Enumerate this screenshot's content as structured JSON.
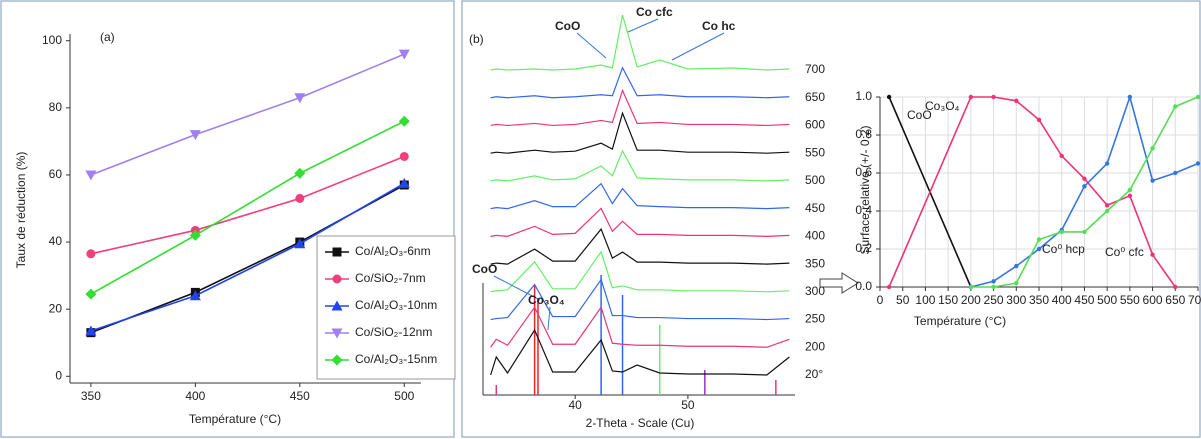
{
  "chart_data": [
    {
      "type": "line",
      "panel_label": "(a)",
      "x_label": "Température (°C)",
      "y_label": "Taux de réduction (%)",
      "x": [
        350,
        400,
        450,
        500
      ],
      "series": [
        {
          "name": "Co/Al₂O₃-6nm",
          "color": "#111111",
          "marker": "square",
          "values": [
            13,
            25,
            40,
            57
          ]
        },
        {
          "name": "Co/SiO₂-7nm",
          "color": "#f0407a",
          "marker": "circle",
          "values": [
            36.5,
            43.5,
            53,
            65.5
          ]
        },
        {
          "name": "Co/Al₂O₃-10nm",
          "color": "#2244ee",
          "marker": "triangle-up",
          "values": [
            13.5,
            24,
            39.5,
            57.5
          ]
        },
        {
          "name": "Co/SiO₂-12nm",
          "color": "#a080f0",
          "marker": "triangle-down",
          "values": [
            60,
            72,
            83,
            96
          ]
        },
        {
          "name": "Co/Al₂O₃-15nm",
          "color": "#33dd33",
          "marker": "diamond",
          "values": [
            24.5,
            42,
            60.5,
            76
          ]
        }
      ],
      "xlim": [
        340,
        508
      ],
      "ylim": [
        -2,
        102
      ],
      "xticks": [
        350,
        400,
        450,
        500
      ],
      "yticks": [
        0,
        20,
        40,
        60,
        80,
        100
      ],
      "legend": "lower right"
    },
    {
      "type": "spectra",
      "panel_label": "(b)",
      "x_label": "2-Theta - Scale (Cu)",
      "x": [
        32.5,
        33,
        34,
        36.4,
        38,
        40,
        42.3,
        43.3,
        44.2,
        45.5,
        47.5,
        50,
        54,
        57,
        59
      ],
      "series": [
        {
          "name": "700",
          "color": "#66ee66",
          "values": [
            0,
            1,
            0,
            1,
            0,
            1,
            5,
            2,
            55,
            3,
            10,
            1,
            2,
            0,
            1
          ]
        },
        {
          "name": "650",
          "color": "#3366ee",
          "values": [
            0,
            1,
            0,
            2,
            0,
            1,
            3,
            2,
            30,
            2,
            3,
            1,
            1,
            0,
            1
          ]
        },
        {
          "name": "600",
          "color": "#ee3377",
          "values": [
            0,
            1,
            0,
            2,
            0,
            1,
            5,
            3,
            35,
            2,
            3,
            1,
            1,
            0,
            1
          ]
        },
        {
          "name": "550",
          "color": "#111111",
          "values": [
            0,
            1,
            0,
            3,
            1,
            2,
            10,
            4,
            40,
            3,
            3,
            1,
            1,
            0,
            1
          ]
        },
        {
          "name": "500",
          "color": "#66ee66",
          "values": [
            0,
            1,
            0,
            5,
            1,
            2,
            15,
            5,
            30,
            3,
            2,
            1,
            1,
            0,
            1
          ]
        },
        {
          "name": "450",
          "color": "#3366ee",
          "values": [
            0,
            1,
            0,
            8,
            2,
            2,
            25,
            5,
            20,
            3,
            2,
            1,
            1,
            0,
            1
          ]
        },
        {
          "name": "400",
          "color": "#ee3377",
          "values": [
            0,
            1,
            0,
            10,
            2,
            3,
            28,
            5,
            15,
            2,
            2,
            1,
            1,
            0,
            1
          ]
        },
        {
          "name": "350",
          "color": "#111111",
          "values": [
            0,
            1,
            0,
            15,
            3,
            3,
            35,
            6,
            12,
            2,
            2,
            1,
            1,
            0,
            1
          ]
        },
        {
          "name": "300",
          "color": "#66ee66",
          "values": [
            0,
            1,
            2,
            30,
            3,
            3,
            40,
            4,
            6,
            2,
            2,
            1,
            1,
            0,
            1
          ]
        },
        {
          "name": "250",
          "color": "#3366ee",
          "values": [
            0,
            1,
            2,
            35,
            3,
            3,
            40,
            4,
            4,
            2,
            2,
            1,
            1,
            0,
            1
          ]
        },
        {
          "name": "200",
          "color": "#ee3377",
          "values": [
            0,
            8,
            2,
            40,
            3,
            3,
            40,
            4,
            3,
            2,
            2,
            1,
            1,
            0,
            8
          ]
        },
        {
          "name": "20°",
          "color": "#111111",
          "values": [
            0,
            18,
            2,
            45,
            3,
            3,
            35,
            4,
            3,
            10,
            2,
            1,
            1,
            0,
            18
          ]
        }
      ],
      "reference_peaks": [
        {
          "x": 33,
          "height": 10,
          "color": "#ee3377"
        },
        {
          "x": 36.4,
          "height": 110,
          "color": "#ee2222"
        },
        {
          "x": 36.7,
          "height": 95,
          "color": "#ee2222"
        },
        {
          "x": 42.3,
          "height": 120,
          "color": "#3366ee"
        },
        {
          "x": 44.2,
          "height": 100,
          "color": "#3366ee"
        },
        {
          "x": 47.5,
          "height": 70,
          "color": "#66ee66"
        },
        {
          "x": 51.5,
          "height": 25,
          "color": "#9933cc"
        },
        {
          "x": 57.8,
          "height": 15,
          "color": "#ee3377"
        }
      ],
      "annotations": [
        "CoO",
        "Co cfc",
        "Co hc",
        "CoO",
        "Co₃O₄"
      ],
      "xlim": [
        32,
        59.5
      ],
      "xticks": [
        40,
        50
      ]
    },
    {
      "type": "line",
      "x_label": "Température (°C)",
      "y_label": "Surface relative (+/- 0.2)",
      "series": [
        {
          "name": "Co₃O₄",
          "color": "#111111",
          "x": [
            20,
            200
          ],
          "values": [
            1.0,
            0
          ]
        },
        {
          "name": "CoO",
          "color": "#ee3377",
          "x": [
            20,
            200,
            250,
            300,
            350,
            400,
            450,
            500,
            550,
            600,
            650
          ],
          "values": [
            0,
            1.0,
            1.0,
            0.98,
            0.88,
            0.69,
            0.57,
            0.43,
            0.48,
            0.17,
            0
          ]
        },
        {
          "name": "Co⁰ hcp",
          "color": "#3377dd",
          "x": [
            200,
            250,
            300,
            350,
            400,
            450,
            500,
            550,
            600,
            650,
            700
          ],
          "values": [
            0,
            0.03,
            0.11,
            0.2,
            0.3,
            0.53,
            0.65,
            1.0,
            0.56,
            0.6,
            0.65
          ]
        },
        {
          "name": "Co⁰ cfc",
          "color": "#55dd55",
          "x": [
            200,
            250,
            300,
            350,
            400,
            450,
            500,
            550,
            600,
            650,
            700
          ],
          "values": [
            0,
            0,
            0.02,
            0.25,
            0.29,
            0.29,
            0.4,
            0.51,
            0.73,
            0.95,
            1.0
          ]
        }
      ],
      "xlim": [
        0,
        700
      ],
      "ylim": [
        0,
        1.0
      ],
      "xticks": [
        0,
        50,
        100,
        150,
        200,
        250,
        300,
        350,
        400,
        450,
        500,
        550,
        600,
        650,
        700
      ],
      "yticks": [
        {
          "value": 0,
          "label": "0.0"
        },
        {
          "value": 0.2,
          "label": "0.2"
        },
        {
          "value": 0.4,
          "label": "0.4"
        },
        {
          "value": 0.6,
          "label": "0.6"
        },
        {
          "value": 0.8,
          "label": "0.8"
        },
        {
          "value": 1.0,
          "label": "1.0"
        }
      ],
      "grid": true
    }
  ]
}
